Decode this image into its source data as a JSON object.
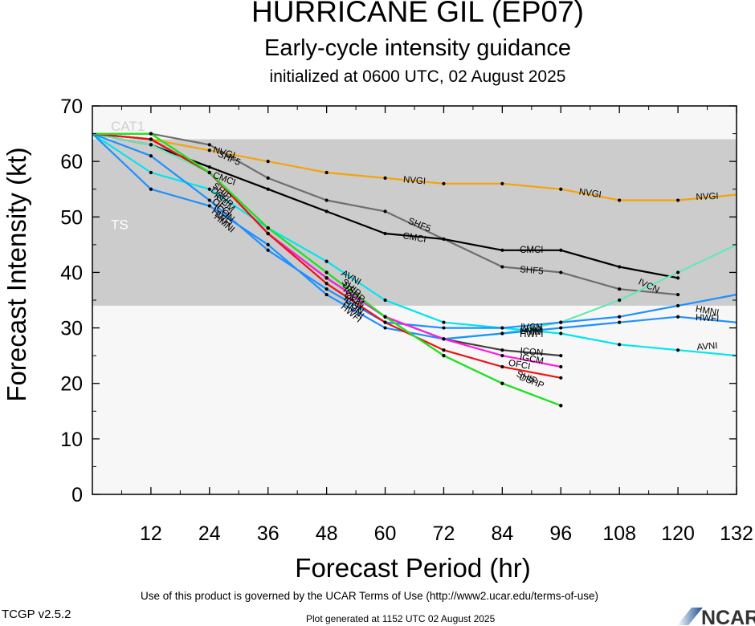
{
  "header": {
    "title": "HURRICANE GIL (EP07)",
    "subtitle": "Early-cycle intensity guidance",
    "init": "initialized at 0600 UTC, 02 August 2025"
  },
  "footer": {
    "terms": "Use of this product is governed by the UCAR Terms of Use (http://www2.ucar.edu/terms-of-use)",
    "version": "TCGP v2.5.2",
    "generated": "Plot generated at 1152 UTC   02 August 2025",
    "logo_text": "NCAR"
  },
  "chart_data": {
    "type": "line",
    "title": "HURRICANE GIL (EP07)",
    "subtitle": "Early-cycle intensity guidance",
    "xlabel": "Forecast Period (hr)",
    "ylabel": "Forecast Intensity (kt)",
    "xlim": [
      0,
      132
    ],
    "ylim": [
      0,
      70
    ],
    "xticks": [
      12,
      24,
      36,
      48,
      60,
      72,
      84,
      96,
      108,
      120,
      132
    ],
    "yticks": [
      0,
      10,
      20,
      30,
      40,
      50,
      60,
      70
    ],
    "grid": false,
    "colors": {
      "plot_background": "#f7f7f7",
      "band_fill": "#cccccc"
    },
    "bands": [
      {
        "label": "TS",
        "from": 34,
        "to": 64,
        "fill": "#cccccc",
        "label_color": "#ffffff"
      },
      {
        "label": "CAT1",
        "from": 64,
        "to": 83,
        "fill": "#f7f7f7",
        "label_color": "#cfcfcf"
      }
    ],
    "series": [
      {
        "name": "NVGI",
        "color": "#f5a30a",
        "x": [
          0,
          12,
          24,
          36,
          48,
          60,
          72,
          84,
          96,
          108,
          120,
          132
        ],
        "y": [
          65,
          64,
          62,
          60,
          58,
          57,
          56,
          56,
          55,
          53,
          53,
          54
        ]
      },
      {
        "name": "SHF5",
        "color": "#6e6e6e",
        "x": [
          0,
          12,
          24,
          36,
          48,
          60,
          72,
          84,
          96,
          108,
          120
        ],
        "y": [
          65,
          65,
          63,
          57,
          53,
          51,
          46,
          41,
          40,
          37,
          36
        ]
      },
      {
        "name": "CMCI",
        "color": "#000000",
        "x": [
          0,
          12,
          24,
          36,
          48,
          60,
          72,
          84,
          96,
          108,
          120
        ],
        "y": [
          65,
          63,
          59,
          55,
          51,
          47,
          46,
          44,
          44,
          41,
          39
        ]
      },
      {
        "name": "IVCN",
        "color": "#66e8b4",
        "x": [
          0,
          12,
          24,
          36,
          48,
          60,
          72,
          84,
          96,
          108,
          120,
          132
        ],
        "y": [
          65,
          63,
          58,
          47,
          39,
          32,
          28,
          29,
          31,
          35,
          40,
          45
        ]
      },
      {
        "name": "AVNI",
        "color": "#00e5ee",
        "x": [
          0,
          12,
          24,
          36,
          48,
          60,
          72,
          84,
          96,
          108,
          120,
          132
        ],
        "y": [
          65,
          58,
          55,
          48,
          42,
          35,
          31,
          30,
          29,
          27,
          26,
          25
        ]
      },
      {
        "name": "HWFI",
        "color": "#1e90ff",
        "x": [
          0,
          12,
          24,
          36,
          48,
          60,
          72,
          84,
          96,
          108,
          120,
          132
        ],
        "y": [
          65,
          55,
          52,
          45,
          36,
          30,
          28,
          29,
          30,
          31,
          32,
          31
        ]
      },
      {
        "name": "HMNI",
        "color": "#1e90ff",
        "x": [
          0,
          12,
          24,
          36,
          48,
          60,
          72,
          84,
          96,
          108,
          120,
          132
        ],
        "y": [
          65,
          61,
          53,
          44,
          37,
          31,
          30,
          30,
          31,
          32,
          34,
          36
        ]
      },
      {
        "name": "ICON",
        "color": "#404040",
        "x": [
          0,
          12,
          24,
          36,
          48,
          60,
          72,
          84,
          96
        ],
        "y": [
          65,
          64,
          58,
          47,
          39,
          32,
          28,
          26,
          25
        ]
      },
      {
        "name": "IGCM",
        "color": "#ff1fde",
        "x": [
          0,
          12,
          24,
          36,
          48,
          60,
          72,
          84,
          96
        ],
        "y": [
          65,
          64,
          58,
          47,
          39,
          32,
          28,
          25,
          23
        ]
      },
      {
        "name": "OFCI",
        "color": "#ee1111",
        "x": [
          0,
          12,
          24,
          36,
          48,
          60,
          72,
          84,
          96
        ],
        "y": [
          65,
          64,
          58,
          47,
          38,
          31,
          26,
          23,
          21
        ]
      },
      {
        "name": "SHIP",
        "color": "#22e022",
        "x": [
          0,
          12,
          24,
          36,
          48,
          60,
          72,
          84,
          96
        ],
        "y": [
          65,
          65,
          58,
          48,
          40,
          32,
          25,
          20,
          16
        ]
      },
      {
        "name": "DSHP",
        "color": "#22e022",
        "x": [
          0,
          12,
          24,
          36,
          48,
          60,
          72,
          84,
          96
        ],
        "y": [
          65,
          65,
          58,
          48,
          40,
          32,
          25,
          20,
          16
        ]
      }
    ],
    "annotations": [
      {
        "text": "NVGI",
        "x": 27,
        "y": 61.5,
        "angle": 16
      },
      {
        "text": "SHF5",
        "x": 28,
        "y": 60.5,
        "angle": 24
      },
      {
        "text": "CMCI",
        "x": 27,
        "y": 56.8,
        "angle": 20
      },
      {
        "text": "SHIP",
        "x": 26.5,
        "y": 54.5,
        "angle": 40
      },
      {
        "text": "DSHP",
        "x": 26.5,
        "y": 53.5,
        "angle": 40
      },
      {
        "text": "IGCM",
        "x": 27,
        "y": 52.6,
        "angle": 40
      },
      {
        "text": "OFCI",
        "x": 26.5,
        "y": 51.7,
        "angle": 40
      },
      {
        "text": "ICON",
        "x": 27,
        "y": 50.7,
        "angle": 40
      },
      {
        "text": "HWFI",
        "x": 26.5,
        "y": 49.8,
        "angle": 40
      },
      {
        "text": "HMNI",
        "x": 27,
        "y": 48.8,
        "angle": 40
      },
      {
        "text": "NVGI",
        "x": 66,
        "y": 56.5,
        "angle": 5
      },
      {
        "text": "NVGI",
        "x": 102,
        "y": 54.2,
        "angle": 8
      },
      {
        "text": "NVGI",
        "x": 126,
        "y": 53.6,
        "angle": -3
      },
      {
        "text": "SHF5",
        "x": 67,
        "y": 48.5,
        "angle": 22
      },
      {
        "text": "CMCI",
        "x": 66,
        "y": 46.2,
        "angle": 10
      },
      {
        "text": "CMCI",
        "x": 90,
        "y": 44,
        "angle": 0
      },
      {
        "text": "SHF5",
        "x": 90,
        "y": 40.3,
        "angle": 5
      },
      {
        "text": "IVCN",
        "x": 114,
        "y": 37.5,
        "angle": 25
      },
      {
        "text": "AVNI",
        "x": 53,
        "y": 39,
        "angle": 30
      },
      {
        "text": "SHIP",
        "x": 53,
        "y": 37.2,
        "angle": 40
      },
      {
        "text": "DSHP",
        "x": 53.5,
        "y": 36.4,
        "angle": 40
      },
      {
        "text": "IGCM",
        "x": 53.5,
        "y": 35.6,
        "angle": 40
      },
      {
        "text": "OFCI",
        "x": 53.5,
        "y": 34.8,
        "angle": 40
      },
      {
        "text": "ICON",
        "x": 53.5,
        "y": 34.1,
        "angle": 40
      },
      {
        "text": "HMNI",
        "x": 53.5,
        "y": 33.3,
        "angle": 40
      },
      {
        "text": "HWFI",
        "x": 53,
        "y": 32.6,
        "angle": 40
      },
      {
        "text": "IVCN",
        "x": 90,
        "y": 30,
        "angle": 0
      },
      {
        "text": "AVNI",
        "x": 90,
        "y": 29.6,
        "angle": 0
      },
      {
        "text": "HMNI",
        "x": 90,
        "y": 29.2,
        "angle": 0
      },
      {
        "text": "HWFI",
        "x": 90,
        "y": 28.8,
        "angle": 0
      },
      {
        "text": "ICON",
        "x": 90,
        "y": 25.6,
        "angle": 5
      },
      {
        "text": "IGCM",
        "x": 90,
        "y": 24.3,
        "angle": 10
      },
      {
        "text": "OFCI",
        "x": 87.5,
        "y": 23.3,
        "angle": 10
      },
      {
        "text": "SHIP",
        "x": 89,
        "y": 21,
        "angle": 22
      },
      {
        "text": "DSHP",
        "x": 90,
        "y": 20.3,
        "angle": 22
      },
      {
        "text": "HMNI",
        "x": 126,
        "y": 33,
        "angle": 10
      },
      {
        "text": "HWFI",
        "x": 126,
        "y": 31.7,
        "angle": 3
      },
      {
        "text": "AVNI",
        "x": 126,
        "y": 26.6,
        "angle": -5
      }
    ]
  }
}
